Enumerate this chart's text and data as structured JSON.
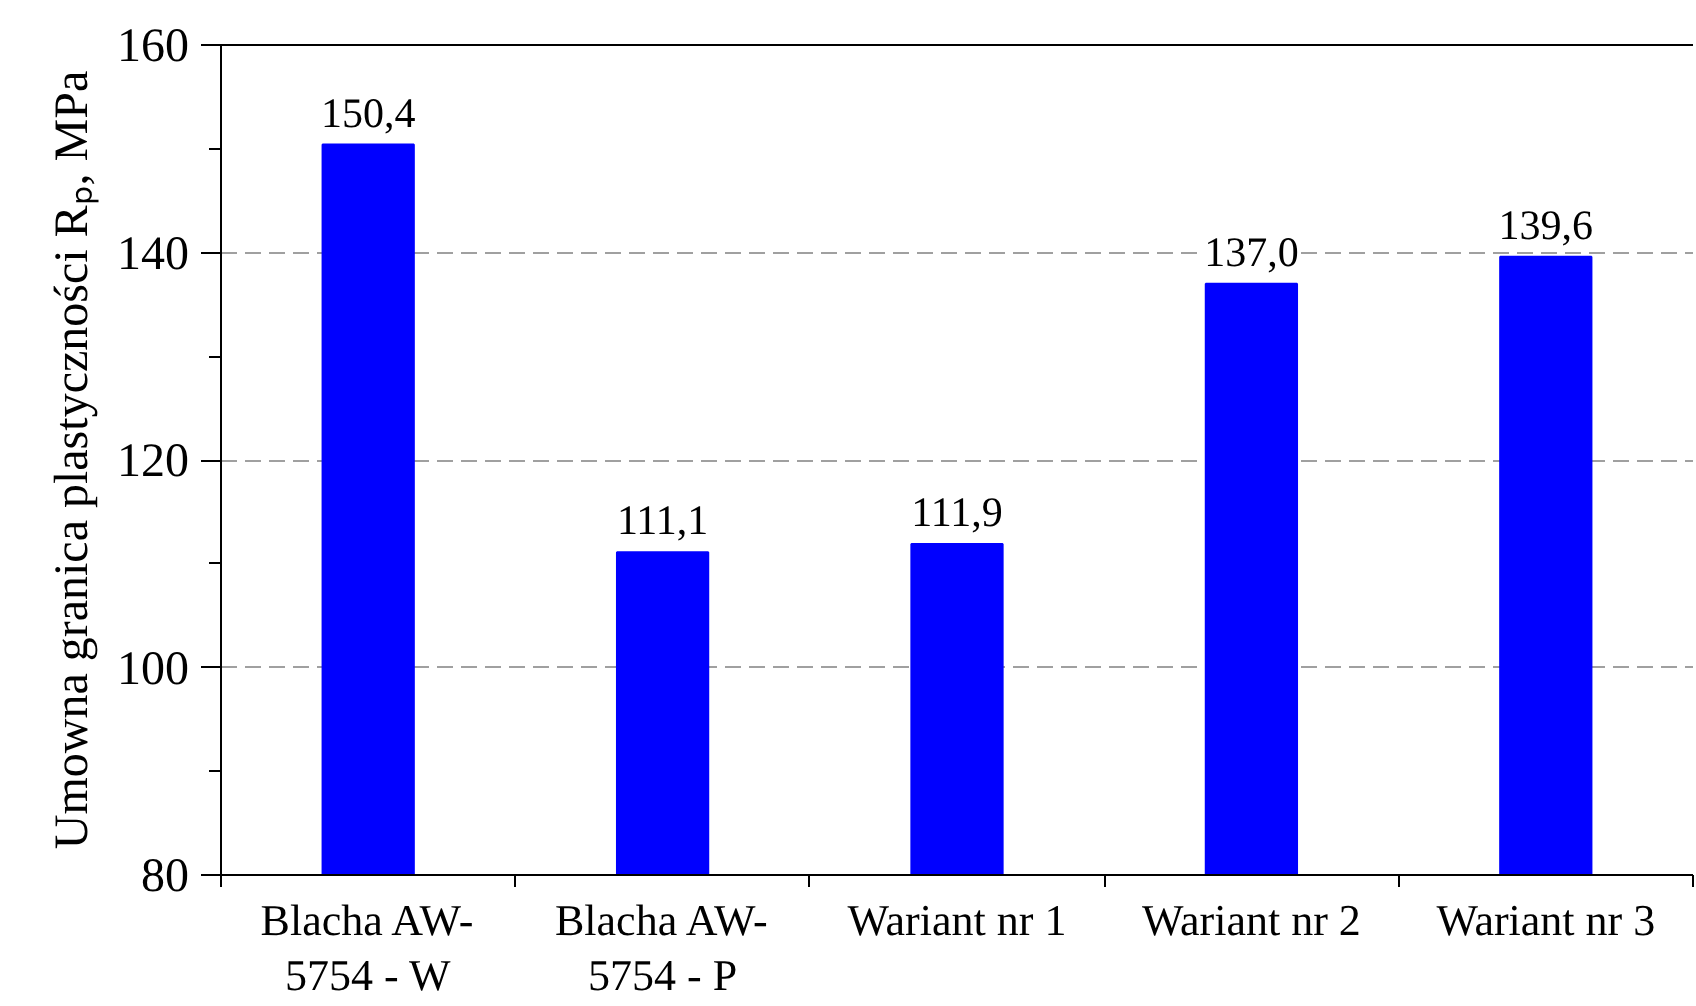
{
  "chart_data": {
    "type": "bar",
    "ylabel": "Umowna granica plastyczności Rₚ, MPa",
    "categories": [
      "Blacha AW-5754 - W",
      "Blacha AW-5754 - P",
      "Wariant nr 1",
      "Wariant nr 2",
      "Wariant nr 3"
    ],
    "values": [
      150.4,
      111.1,
      111.9,
      137.0,
      139.6
    ],
    "value_labels": [
      "150,4",
      "111,1",
      "111,9",
      "137,0",
      "139,6"
    ],
    "color": "#0000ff",
    "ylim": [
      80,
      160
    ],
    "yticks": [
      80,
      {
        "value": 90,
        "label": null
      },
      100,
      {
        "value": 110,
        "label": null
      },
      120,
      {
        "value": 130,
        "label": null
      },
      140,
      {
        "value": 150,
        "label": null
      },
      160
    ],
    "grid": "y"
  }
}
